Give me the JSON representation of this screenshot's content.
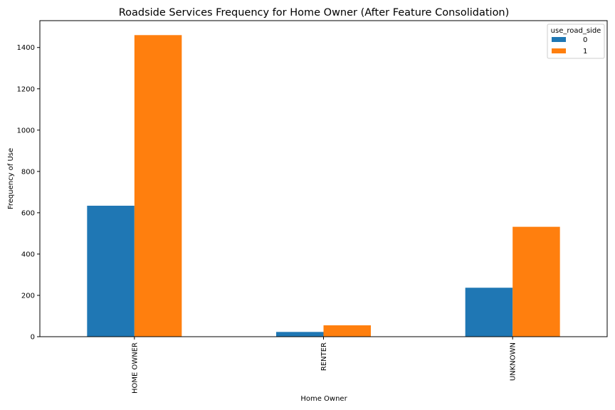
{
  "chart_data": {
    "type": "bar",
    "title": "Roadside Services Frequency for Home Owner (After Feature Consolidation)",
    "xlabel": "Home Owner",
    "ylabel": "Frequency of Use",
    "categories": [
      "HOME OWNER",
      "RENTER",
      "UNKNOWN"
    ],
    "series": [
      {
        "name": "0",
        "values": [
          634,
          23,
          237
        ],
        "color": "#1f77b4"
      },
      {
        "name": "1",
        "values": [
          1460,
          55,
          532
        ],
        "color": "#ff7f0e"
      }
    ],
    "ylim": [
      0,
      1530
    ],
    "yticks": [
      0,
      200,
      400,
      600,
      800,
      1000,
      1200,
      1400
    ],
    "legend": {
      "title": "use_road_side",
      "placement": "top-right"
    },
    "grid": false
  }
}
